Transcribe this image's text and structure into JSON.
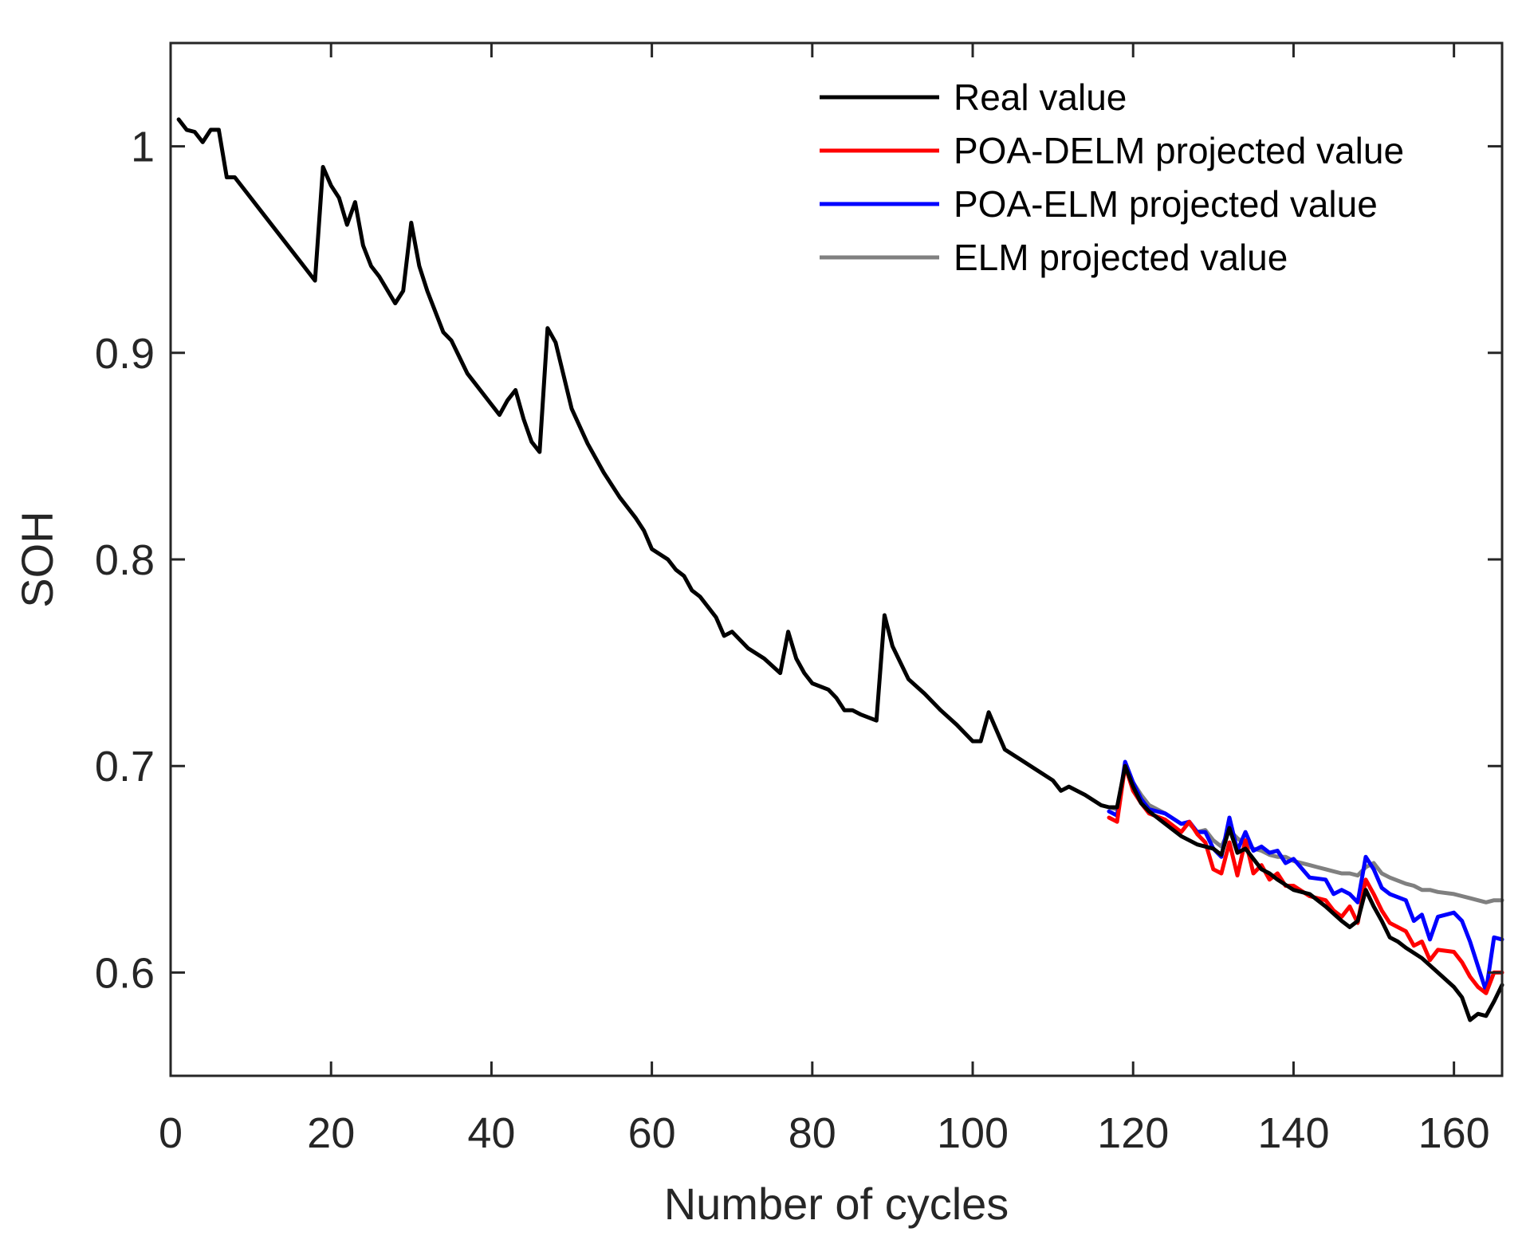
{
  "chart_data": {
    "type": "line",
    "title": "",
    "xlabel": "Number of cycles",
    "ylabel": "SOH",
    "xlim": [
      0,
      166
    ],
    "ylim": [
      0.55,
      1.05
    ],
    "xticks": [
      0,
      20,
      40,
      60,
      80,
      100,
      120,
      140,
      160
    ],
    "xtick_labels": [
      "0",
      "20",
      "40",
      "60",
      "80",
      "100",
      "120",
      "140",
      "160"
    ],
    "yticks": [
      0.6,
      0.7,
      0.8,
      0.9,
      1.0
    ],
    "ytick_labels": [
      "0.6",
      "0.7",
      "0.8",
      "0.9",
      "1"
    ],
    "grid": false,
    "legend_position": "top-right",
    "series": [
      {
        "name": "Real value",
        "color": "#000000",
        "x": [
          1,
          2,
          3,
          4,
          5,
          6,
          7,
          8,
          10,
          12,
          14,
          16,
          17,
          18,
          19,
          20,
          21,
          22,
          23,
          24,
          25,
          26,
          28,
          29,
          30,
          31,
          32,
          34,
          35,
          36,
          37,
          38,
          40,
          41,
          42,
          43,
          44,
          45,
          46,
          47,
          48,
          50,
          52,
          54,
          56,
          58,
          59,
          60,
          62,
          63,
          64,
          65,
          66,
          68,
          69,
          70,
          72,
          74,
          76,
          77,
          78,
          79,
          80,
          82,
          83,
          84,
          85,
          86,
          88,
          89,
          90,
          92,
          94,
          96,
          98,
          100,
          101,
          102,
          104,
          106,
          108,
          110,
          111,
          112,
          114,
          116,
          117,
          118,
          119,
          120,
          121,
          122,
          124,
          126,
          128,
          130,
          131,
          132,
          133,
          134,
          135,
          136,
          137,
          138,
          140,
          142,
          144,
          146,
          147,
          148,
          149,
          150,
          151,
          152,
          153,
          154,
          156,
          158,
          160,
          161,
          162,
          163,
          164,
          165,
          166
        ],
        "y": [
          1.013,
          1.008,
          1.007,
          1.002,
          1.008,
          1.008,
          0.985,
          0.985,
          0.975,
          0.965,
          0.955,
          0.945,
          0.94,
          0.935,
          0.99,
          0.981,
          0.975,
          0.962,
          0.973,
          0.952,
          0.942,
          0.937,
          0.924,
          0.93,
          0.963,
          0.942,
          0.93,
          0.91,
          0.906,
          0.898,
          0.89,
          0.885,
          0.875,
          0.87,
          0.877,
          0.882,
          0.868,
          0.857,
          0.852,
          0.912,
          0.905,
          0.873,
          0.856,
          0.842,
          0.83,
          0.82,
          0.814,
          0.805,
          0.8,
          0.795,
          0.792,
          0.785,
          0.782,
          0.772,
          0.763,
          0.765,
          0.757,
          0.752,
          0.745,
          0.765,
          0.752,
          0.745,
          0.74,
          0.737,
          0.733,
          0.727,
          0.727,
          0.725,
          0.722,
          0.773,
          0.758,
          0.742,
          0.735,
          0.727,
          0.72,
          0.712,
          0.712,
          0.726,
          0.708,
          0.703,
          0.698,
          0.693,
          0.688,
          0.69,
          0.686,
          0.681,
          0.68,
          0.68,
          0.7,
          0.69,
          0.682,
          0.678,
          0.672,
          0.666,
          0.662,
          0.66,
          0.657,
          0.67,
          0.658,
          0.66,
          0.655,
          0.65,
          0.648,
          0.645,
          0.64,
          0.638,
          0.632,
          0.625,
          0.622,
          0.625,
          0.64,
          0.632,
          0.625,
          0.617,
          0.615,
          0.612,
          0.607,
          0.6,
          0.593,
          0.588,
          0.577,
          0.58,
          0.579,
          0.586,
          0.594
        ]
      },
      {
        "name": "POA-DELM projected value",
        "color": "#ff0000",
        "x": [
          117,
          118,
          119,
          120,
          121,
          122,
          124,
          126,
          127,
          128,
          129,
          130,
          131,
          132,
          133,
          134,
          135,
          136,
          137,
          138,
          139,
          140,
          142,
          144,
          145,
          146,
          147,
          148,
          149,
          150,
          151,
          152,
          154,
          155,
          156,
          157,
          158,
          160,
          161,
          162,
          163,
          164,
          165,
          166
        ],
        "y": [
          0.675,
          0.673,
          0.7,
          0.688,
          0.682,
          0.677,
          0.674,
          0.668,
          0.673,
          0.667,
          0.663,
          0.65,
          0.648,
          0.663,
          0.647,
          0.664,
          0.648,
          0.652,
          0.645,
          0.648,
          0.642,
          0.642,
          0.637,
          0.635,
          0.63,
          0.627,
          0.632,
          0.624,
          0.645,
          0.638,
          0.63,
          0.624,
          0.62,
          0.613,
          0.615,
          0.606,
          0.611,
          0.61,
          0.605,
          0.598,
          0.593,
          0.59,
          0.6,
          0.6
        ]
      },
      {
        "name": "POA-ELM projected value",
        "color": "#0000ff",
        "x": [
          117,
          118,
          119,
          120,
          121,
          122,
          124,
          126,
          127,
          128,
          129,
          130,
          131,
          132,
          133,
          134,
          135,
          136,
          137,
          138,
          139,
          140,
          142,
          144,
          145,
          146,
          147,
          148,
          149,
          150,
          151,
          152,
          154,
          155,
          156,
          157,
          158,
          160,
          161,
          162,
          163,
          164,
          165,
          166
        ],
        "y": [
          0.678,
          0.676,
          0.702,
          0.692,
          0.684,
          0.679,
          0.677,
          0.672,
          0.673,
          0.668,
          0.668,
          0.66,
          0.656,
          0.675,
          0.659,
          0.668,
          0.659,
          0.661,
          0.658,
          0.659,
          0.653,
          0.655,
          0.646,
          0.645,
          0.638,
          0.64,
          0.638,
          0.634,
          0.656,
          0.65,
          0.641,
          0.638,
          0.635,
          0.625,
          0.628,
          0.616,
          0.627,
          0.629,
          0.625,
          0.615,
          0.603,
          0.591,
          0.617,
          0.616
        ]
      },
      {
        "name": "ELM projected value",
        "color": "#808080",
        "x": [
          117,
          118,
          119,
          120,
          121,
          122,
          124,
          126,
          127,
          128,
          129,
          130,
          131,
          132,
          133,
          134,
          135,
          136,
          137,
          138,
          139,
          140,
          142,
          144,
          145,
          146,
          147,
          148,
          149,
          150,
          151,
          152,
          154,
          155,
          156,
          157,
          158,
          160,
          161,
          162,
          163,
          164,
          165,
          166
        ],
        "y": [
          0.68,
          0.679,
          0.7,
          0.692,
          0.686,
          0.681,
          0.677,
          0.672,
          0.672,
          0.668,
          0.669,
          0.664,
          0.661,
          0.669,
          0.665,
          0.662,
          0.66,
          0.659,
          0.657,
          0.656,
          0.656,
          0.654,
          0.652,
          0.65,
          0.649,
          0.648,
          0.648,
          0.647,
          0.651,
          0.653,
          0.648,
          0.646,
          0.643,
          0.642,
          0.64,
          0.64,
          0.639,
          0.638,
          0.637,
          0.636,
          0.635,
          0.634,
          0.635,
          0.635
        ]
      }
    ]
  }
}
